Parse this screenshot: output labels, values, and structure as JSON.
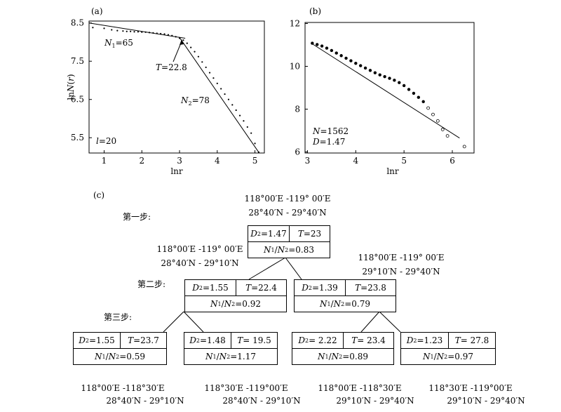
{
  "chart_data": [
    {
      "panel": "(a)",
      "type": "scatter",
      "xlabel": "lnr",
      "ylabel": "lnN(r)",
      "xlim": [
        0.6,
        5.25
      ],
      "ylim": [
        5.1,
        8.55
      ],
      "xticks": [
        "1",
        "2",
        "3",
        "4",
        "5"
      ],
      "yticks": [
        "8.5",
        "7.5",
        "6.5",
        "5.5"
      ],
      "points": [
        [
          0.7,
          8.38
        ],
        [
          1.0,
          8.36
        ],
        [
          1.2,
          8.32
        ],
        [
          1.35,
          8.3
        ],
        [
          1.5,
          8.29
        ],
        [
          1.6,
          8.28
        ],
        [
          1.7,
          8.28
        ],
        [
          1.8,
          8.27
        ],
        [
          1.9,
          8.27
        ],
        [
          2.0,
          8.26
        ],
        [
          2.1,
          8.26
        ],
        [
          2.2,
          8.25
        ],
        [
          2.3,
          8.24
        ],
        [
          2.4,
          8.23
        ],
        [
          2.5,
          8.22
        ],
        [
          2.6,
          8.21
        ],
        [
          2.7,
          8.19
        ],
        [
          2.8,
          8.17
        ],
        [
          2.9,
          8.14
        ],
        [
          3.0,
          8.1
        ],
        [
          3.1,
          8.05
        ],
        [
          3.2,
          7.97
        ],
        [
          3.3,
          7.86
        ],
        [
          3.4,
          7.75
        ],
        [
          3.5,
          7.62
        ],
        [
          3.6,
          7.48
        ],
        [
          3.7,
          7.34
        ],
        [
          3.8,
          7.2
        ],
        [
          3.9,
          7.06
        ],
        [
          4.0,
          6.92
        ],
        [
          4.1,
          6.78
        ],
        [
          4.2,
          6.64
        ],
        [
          4.3,
          6.5
        ],
        [
          4.4,
          6.36
        ],
        [
          4.5,
          6.22
        ],
        [
          4.6,
          6.08
        ],
        [
          4.7,
          5.94
        ],
        [
          4.8,
          5.78
        ],
        [
          4.9,
          5.62
        ],
        [
          5.0,
          5.35
        ],
        [
          5.1,
          5.12
        ]
      ],
      "fit_lines": [
        {
          "x": [
            0.6,
            3.15
          ],
          "y": [
            8.5,
            8.1
          ]
        },
        {
          "x": [
            3.0,
            5.1
          ],
          "y": [
            8.12,
            5.12
          ]
        }
      ],
      "annotations": [
        "N1=65",
        "T=22.8",
        "N2=78",
        "l=20"
      ]
    },
    {
      "panel": "(b)",
      "type": "scatter",
      "xlabel": "lnr",
      "xlim": [
        2.95,
        6.45
      ],
      "ylim": [
        5.95,
        12.05
      ],
      "xticks": [
        "3",
        "4",
        "5",
        "6"
      ],
      "yticks": [
        "12",
        "10",
        "8",
        "6"
      ],
      "points": [
        [
          3.1,
          11.08
        ],
        [
          3.2,
          11.02
        ],
        [
          3.3,
          10.95
        ],
        [
          3.4,
          10.85
        ],
        [
          3.5,
          10.74
        ],
        [
          3.6,
          10.62
        ],
        [
          3.7,
          10.5
        ],
        [
          3.8,
          10.38
        ],
        [
          3.9,
          10.26
        ],
        [
          4.0,
          10.14
        ],
        [
          4.1,
          10.03
        ],
        [
          4.2,
          9.92
        ],
        [
          4.3,
          9.81
        ],
        [
          4.4,
          9.7
        ],
        [
          4.5,
          9.6
        ],
        [
          4.6,
          9.52
        ],
        [
          4.7,
          9.44
        ],
        [
          4.8,
          9.35
        ],
        [
          4.9,
          9.24
        ],
        [
          5.0,
          9.1
        ],
        [
          5.1,
          8.92
        ],
        [
          5.2,
          8.74
        ],
        [
          5.3,
          8.55
        ],
        [
          5.4,
          8.35
        ],
        [
          5.5,
          8.05
        ],
        [
          5.6,
          7.75
        ],
        [
          5.7,
          7.45
        ],
        [
          5.8,
          7.05
        ],
        [
          5.9,
          6.75
        ],
        [
          6.25,
          6.25
        ]
      ],
      "fit_line": {
        "x": [
          3.1,
          6.15
        ],
        "y": [
          11.05,
          6.65
        ]
      },
      "annotations": [
        "N=1562",
        "D=1.47"
      ]
    }
  ],
  "panel_c": {
    "label": "(c)",
    "steps": [
      "第一步:",
      "第二步:",
      "第三步:"
    ],
    "nodes": [
      {
        "range_line1": "118°00′E -119° 00′E",
        "range_line2": "28°40′N - 29°40′N",
        "d_label": "D",
        "d_sub": "2",
        "d_value": "=1.47",
        "t_label": "T",
        "t_value": "=23",
        "ratio_value": "=0.83"
      },
      {
        "range_line1": "118°00′E -119° 00′E",
        "range_line2": "28°40′N - 29°10′N",
        "d_label": "D",
        "d_sub": "2",
        "d_value": "=1.55",
        "t_label": "T",
        "t_value": " =22.4",
        "ratio_value": "=0.92"
      },
      {
        "range_line1": "118°00′E -119° 00′E",
        "range_line2": "29°10′N - 29°40′N",
        "d_label": "D",
        "d_sub": "2",
        "d_value": "=1.39",
        "t_label": "T",
        "t_value": " =23.8",
        "ratio_value": "=0.79"
      },
      {
        "range_line1": "118°00′E -118°30′E",
        "range_line2": "28°40′N - 29°10′N",
        "d_label": "D",
        "d_sub": "2",
        "d_value": "=1.55",
        "t_label": "T",
        "t_value": "=23.7",
        "ratio_value": "=0.59"
      },
      {
        "range_line1": "118°30′E -119°00′E",
        "range_line2": "28°40′N - 29°10′N",
        "d_label": "D",
        "d_sub": "2",
        "d_value": "=1.48",
        "t_label": "T",
        "t_value": "= 19.5",
        "ratio_value": "=1.17"
      },
      {
        "range_line1": "118°00′E -118°30′E",
        "range_line2": "29°10′N - 29°40′N",
        "d_label": "D",
        "d_sub": "2",
        "d_value": "= 2.22",
        "t_label": "T",
        "t_value": " = 23.4",
        "ratio_value": "=0.89"
      },
      {
        "range_line1": "118°30′E -119°00′E",
        "range_line2": "29°10′N - 29°40′N",
        "d_label": "D",
        "d_sub": "2",
        "d_value": "=1.23",
        "t_label": "T",
        "t_value": "= 27.8",
        "ratio_value": "=0.97"
      }
    ]
  }
}
